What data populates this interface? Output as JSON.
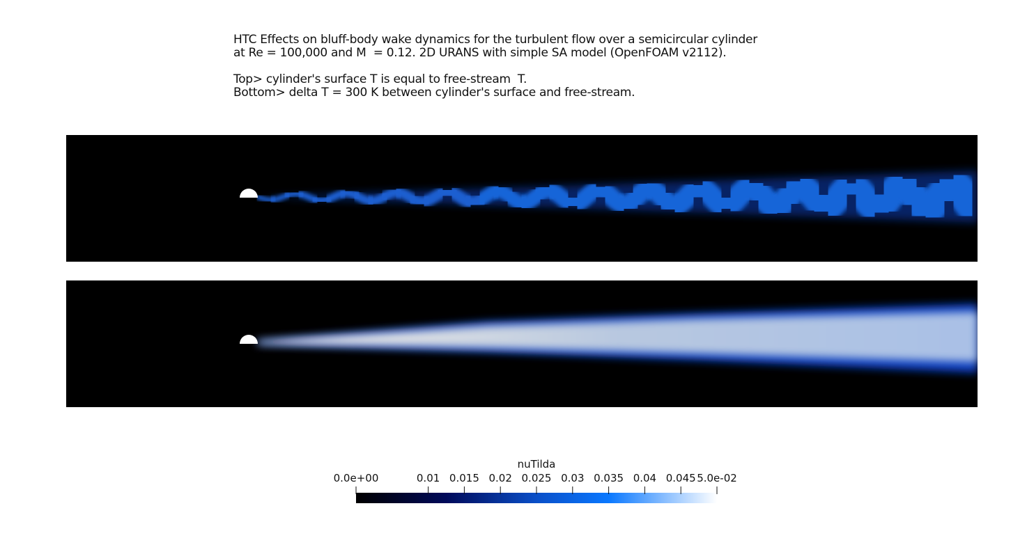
{
  "header": {
    "lines": [
      "HTC Effects on bluff-body wake dynamics for the turbulent flow over a semicircular cylinder",
      "at Re = 100,000 and M  = 0.12. 2D URANS with simple SA model (OpenFOAM v2112).",
      "Top> cylinder's surface T is equal to free-stream  T.",
      "Bottom> delta T = 300 K between cylinder's surface and free-stream."
    ]
  },
  "colorbar": {
    "title": "nuTilda",
    "range": [
      0,
      0.05
    ],
    "ticks": [
      {
        "value": 0,
        "label": "0.0e+00"
      },
      0.01,
      0.015,
      0.02,
      0.025,
      0.03,
      0.035,
      0.04,
      0.045,
      {
        "value": 0.05,
        "label": "5.0e-02"
      }
    ]
  }
}
